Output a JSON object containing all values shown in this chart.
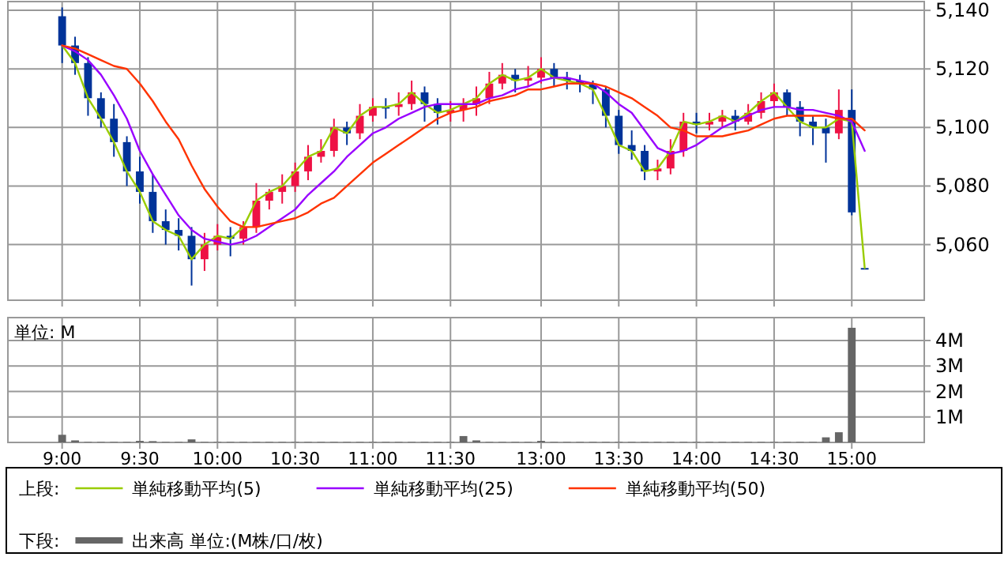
{
  "chart_data": [
    {
      "type": "candlestick",
      "categories": [
        null,
        null,
        null,
        null,
        null,
        null,
        null,
        null,
        null,
        null,
        null,
        null,
        null,
        null,
        null,
        null,
        null,
        null,
        null,
        null,
        null,
        null,
        null,
        null,
        null,
        null,
        null,
        null,
        null,
        null,
        null,
        null,
        null,
        null,
        null,
        null,
        null,
        null,
        null,
        null,
        null,
        null,
        null,
        null,
        null,
        null,
        null,
        null,
        null,
        null,
        null,
        null,
        null,
        null,
        null,
        null,
        null,
        null,
        null,
        null,
        null,
        null,
        null
      ],
      "ohlc": [
        [
          5138,
          5141,
          5122,
          5128
        ],
        [
          5128,
          5131,
          5118,
          5122
        ],
        [
          5122,
          5124,
          5104,
          5110
        ],
        [
          5110,
          5112,
          5100,
          5103
        ],
        [
          5103,
          5108,
          5090,
          5095
        ],
        [
          5095,
          5097,
          5080,
          5085
        ],
        [
          5085,
          5090,
          5074,
          5078
        ],
        [
          5078,
          5084,
          5064,
          5068
        ],
        [
          5068,
          5072,
          5060,
          5065
        ],
        [
          5065,
          5069,
          5058,
          5063
        ],
        [
          5063,
          5066,
          5046,
          5055
        ],
        [
          5055,
          5064,
          5051,
          5060
        ],
        [
          5060,
          5067,
          5058,
          5063
        ],
        [
          5063,
          5066,
          5056,
          5062
        ],
        [
          5062,
          5068,
          5060,
          5066
        ],
        [
          5066,
          5081,
          5064,
          5075
        ],
        [
          5075,
          5079,
          5072,
          5078
        ],
        [
          5078,
          5084,
          5074,
          5080
        ],
        [
          5080,
          5088,
          5078,
          5085
        ],
        [
          5085,
          5094,
          5082,
          5090
        ],
        [
          5090,
          5096,
          5088,
          5092
        ],
        [
          5092,
          5103,
          5090,
          5100
        ],
        [
          5100,
          5102,
          5094,
          5098
        ],
        [
          5098,
          5108,
          5096,
          5104
        ],
        [
          5104,
          5110,
          5102,
          5107
        ],
        [
          5107,
          5110,
          5103,
          5107
        ],
        [
          5107,
          5112,
          5104,
          5108
        ],
        [
          5108,
          5116,
          5106,
          5112
        ],
        [
          5112,
          5114,
          5102,
          5108
        ],
        [
          5108,
          5110,
          5101,
          5105
        ],
        [
          5105,
          5109,
          5102,
          5106
        ],
        [
          5106,
          5110,
          5102,
          5108
        ],
        [
          5108,
          5114,
          5104,
          5110
        ],
        [
          5110,
          5119,
          5108,
          5115
        ],
        [
          5115,
          5122,
          5113,
          5118
        ],
        [
          5118,
          5120,
          5112,
          5116
        ],
        [
          5116,
          5121,
          5114,
          5117
        ],
        [
          5117,
          5124,
          5115,
          5120
        ],
        [
          5120,
          5122,
          5114,
          5117
        ],
        [
          5117,
          5119,
          5113,
          5116
        ],
        [
          5116,
          5118,
          5112,
          5115
        ],
        [
          5115,
          5116,
          5108,
          5113
        ],
        [
          5113,
          5114,
          5100,
          5104
        ],
        [
          5104,
          5106,
          5091,
          5094
        ],
        [
          5094,
          5099,
          5089,
          5092
        ],
        [
          5092,
          5094,
          5082,
          5085
        ],
        [
          5085,
          5089,
          5082,
          5086
        ],
        [
          5086,
          5096,
          5084,
          5092
        ],
        [
          5092,
          5105,
          5090,
          5102
        ],
        [
          5102,
          5105,
          5098,
          5101
        ],
        [
          5101,
          5105,
          5099,
          5102
        ],
        [
          5102,
          5106,
          5100,
          5104
        ],
        [
          5104,
          5106,
          5099,
          5102
        ],
        [
          5102,
          5108,
          5101,
          5105
        ],
        [
          5105,
          5112,
          5103,
          5109
        ],
        [
          5109,
          5115,
          5107,
          5112
        ],
        [
          5112,
          5113,
          5104,
          5107
        ],
        [
          5107,
          5109,
          5097,
          5102
        ],
        [
          5102,
          5104,
          5094,
          5100
        ],
        [
          5100,
          5103,
          5088,
          5098
        ],
        [
          5098,
          5113,
          5096,
          5106
        ],
        [
          5106,
          5113,
          5070,
          5071
        ],
        [
          5052,
          5052,
          5052,
          5052
        ]
      ],
      "colors": [
        "#003399",
        "#003399",
        "#003399",
        "#003399",
        "#003399",
        "#003399",
        "#003399",
        "#003399",
        "#003399",
        "#003399",
        "#003399",
        "#ee1144",
        "#ee1144",
        "#003399",
        "#ee1144",
        "#ee1144",
        "#ee1144",
        "#ee1144",
        "#ee1144",
        "#ee1144",
        "#ee1144",
        "#ee1144",
        "#003399",
        "#ee1144",
        "#ee1144",
        "#003399",
        "#ee1144",
        "#ee1144",
        "#003399",
        "#003399",
        "#ee1144",
        "#ee1144",
        "#ee1144",
        "#ee1144",
        "#ee1144",
        "#003399",
        "#ee1144",
        "#ee1144",
        "#003399",
        "#003399",
        "#003399",
        "#003399",
        "#003399",
        "#003399",
        "#003399",
        "#003399",
        "#ee1144",
        "#ee1144",
        "#ee1144",
        "#003399",
        "#ee1144",
        "#ee1144",
        "#003399",
        "#ee1144",
        "#ee1144",
        "#ee1144",
        "#003399",
        "#003399",
        "#003399",
        "#003399",
        "#ee1144",
        "#003399",
        "#003399"
      ],
      "series": [
        {
          "type": "line",
          "name": "単純移動平均(5)",
          "color": "#99cc00",
          "values": [
            5128,
            5122,
            5110,
            5103,
            5095,
            5085,
            5078,
            5068,
            5065,
            5063,
            5055,
            5060,
            5063,
            5062,
            5066,
            5075,
            5078,
            5080,
            5085,
            5090,
            5092,
            5100,
            5098,
            5104,
            5107,
            5107,
            5108,
            5112,
            5108,
            5105,
            5106,
            5108,
            5110,
            5115,
            5118,
            5116,
            5117,
            5120,
            5117,
            5116,
            5115,
            5113,
            5104,
            5094,
            5092,
            5085,
            5086,
            5092,
            5102,
            5101,
            5102,
            5104,
            5102,
            5105,
            5109,
            5112,
            5107,
            5102,
            5100,
            5100,
            5103,
            5102,
            5052
          ]
        },
        {
          "type": "line",
          "name": "単純移動平均(25)",
          "color": "#9900ff",
          "values": [
            5128,
            5126,
            5123,
            5118,
            5111,
            5103,
            5092,
            5084,
            5077,
            5070,
            5065,
            5062,
            5061,
            5060,
            5061,
            5063,
            5066,
            5069,
            5072,
            5077,
            5081,
            5085,
            5090,
            5094,
            5098,
            5100,
            5103,
            5105,
            5107,
            5108,
            5108,
            5108,
            5108,
            5110,
            5111,
            5113,
            5114,
            5116,
            5117,
            5117,
            5116,
            5115,
            5112,
            5108,
            5105,
            5099,
            5093,
            5091,
            5092,
            5094,
            5097,
            5100,
            5102,
            5104,
            5106,
            5107,
            5107,
            5106,
            5106,
            5105,
            5104,
            5102,
            5092
          ]
        },
        {
          "type": "line",
          "name": "単純移動平均(50)",
          "color": "#ff3300",
          "values": [
            5128,
            5127,
            5125,
            5123,
            5121,
            5120,
            5115,
            5109,
            5102,
            5096,
            5087,
            5079,
            5073,
            5068,
            5066,
            5066,
            5067,
            5068,
            5069,
            5071,
            5074,
            5076,
            5080,
            5084,
            5088,
            5091,
            5094,
            5097,
            5100,
            5103,
            5105,
            5106,
            5107,
            5109,
            5110,
            5111,
            5113,
            5113,
            5114,
            5115,
            5115,
            5115,
            5114,
            5112,
            5110,
            5107,
            5104,
            5100,
            5099,
            5097,
            5097,
            5097,
            5098,
            5099,
            5101,
            5103,
            5104,
            5104,
            5104,
            5104,
            5103,
            5103,
            5099
          ]
        }
      ],
      "ylim": [
        5041,
        5143
      ],
      "yticks": [
        {
          "value": 5060,
          "label": "5,060"
        },
        {
          "value": 5080,
          "label": "5,080"
        },
        {
          "value": 5100,
          "label": "5,100"
        },
        {
          "value": 5120,
          "label": "5,120"
        },
        {
          "value": 5140,
          "label": "5,140"
        }
      ],
      "grid": true,
      "tick_labels": "y",
      "legend": "bottom",
      "legend_title": "上段:"
    },
    {
      "type": "bar",
      "categories": [
        "9:00",
        null,
        null,
        null,
        null,
        null,
        "9:30",
        null,
        null,
        null,
        null,
        null,
        "10:00",
        null,
        null,
        null,
        null,
        null,
        "10:30",
        null,
        null,
        null,
        null,
        null,
        "11:00",
        null,
        null,
        null,
        null,
        null,
        "11:30",
        null,
        null,
        null,
        null,
        null,
        null,
        "13:00",
        null,
        null,
        null,
        null,
        null,
        "13:30",
        null,
        null,
        null,
        null,
        null,
        "14:00",
        null,
        null,
        null,
        null,
        null,
        "14:30",
        null,
        null,
        null,
        null,
        null,
        "15:00",
        null
      ],
      "series": [
        {
          "name": "出来高 単位:(M株/口/枚)",
          "color": "#666666",
          "values": [
            0.3,
            0.08,
            0.02,
            0.02,
            0.02,
            0.02,
            0.06,
            0.05,
            0.02,
            0.02,
            0.12,
            0.02,
            0.02,
            0.02,
            0.02,
            0.02,
            0.02,
            0.02,
            0.02,
            0.02,
            0.02,
            0.02,
            0.02,
            0.02,
            0.02,
            0.02,
            0.02,
            0.02,
            0.02,
            0.02,
            0.02,
            0.25,
            0.08,
            0.02,
            0.02,
            0.02,
            0.02,
            0.06,
            0.02,
            0.02,
            0.02,
            0.02,
            0.02,
            0.02,
            0.02,
            0.02,
            0.02,
            0.02,
            0.02,
            0.02,
            0.02,
            0.02,
            0.02,
            0.02,
            0.02,
            0.02,
            0.02,
            0.02,
            0.02,
            0.2,
            0.4,
            4.5,
            0
          ]
        }
      ],
      "ylim": [
        0,
        4.9
      ],
      "yticks": [
        {
          "value": 1,
          "label": "1M"
        },
        {
          "value": 2,
          "label": "2M"
        },
        {
          "value": 3,
          "label": "3M"
        },
        {
          "value": 4,
          "label": "4M"
        }
      ],
      "grid": true,
      "legend": "bottom",
      "legend_title": "下段:",
      "annotations": [
        "単位: M"
      ]
    }
  ]
}
